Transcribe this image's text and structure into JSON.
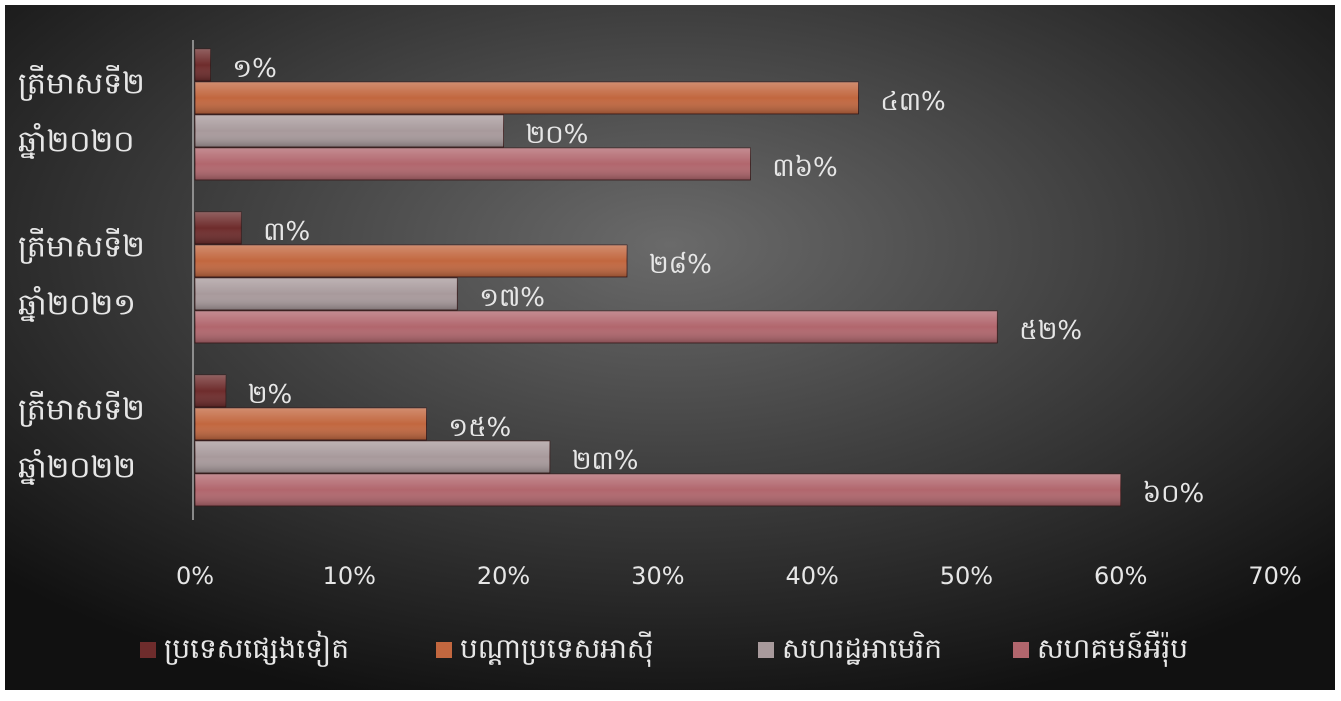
{
  "chart_data": {
    "type": "bar",
    "orientation": "horizontal",
    "categories": [
      [
        "ត្រីមាសទី២",
        "ឆ្នាំ២០២០"
      ],
      [
        "ត្រីមាសទី២",
        "ឆ្នាំ២០២១"
      ],
      [
        "ត្រីមាសទី២",
        "ឆ្នាំ២០២២"
      ]
    ],
    "series": [
      {
        "name": "ប្រទេសផ្សេងទៀត",
        "color": "#6e2c2c",
        "values": [
          1,
          3,
          2
        ],
        "value_labels": [
          "១%",
          "៣%",
          "២%"
        ]
      },
      {
        "name": "បណ្តាប្រទេសអាស៊ី",
        "color": "#c2673f",
        "values": [
          43,
          28,
          15
        ],
        "value_labels": [
          "៤៣%",
          "២៨%",
          "១៥%"
        ]
      },
      {
        "name": "សហរដ្ឋអាមេរិក",
        "color": "#a89a9c",
        "values": [
          20,
          17,
          23
        ],
        "value_labels": [
          "២០%",
          "១៧%",
          "២៣%"
        ]
      },
      {
        "name": "សហគមន៍អឺរ៉ុប",
        "color": "#b1666d",
        "values": [
          36,
          52,
          60
        ],
        "value_labels": [
          "៣៦%",
          "៥២%",
          "៦០%"
        ]
      }
    ],
    "xlim": [
      0,
      70
    ],
    "xticks": [
      {
        "value": 0,
        "label": "0%"
      },
      {
        "value": 10,
        "label": "10%"
      },
      {
        "value": 20,
        "label": "20%"
      },
      {
        "value": 30,
        "label": "30%"
      },
      {
        "value": 40,
        "label": "40%"
      },
      {
        "value": 50,
        "label": "50%"
      },
      {
        "value": 60,
        "label": "60%"
      },
      {
        "value": 70,
        "label": "70%"
      }
    ],
    "legend": "bottom"
  }
}
